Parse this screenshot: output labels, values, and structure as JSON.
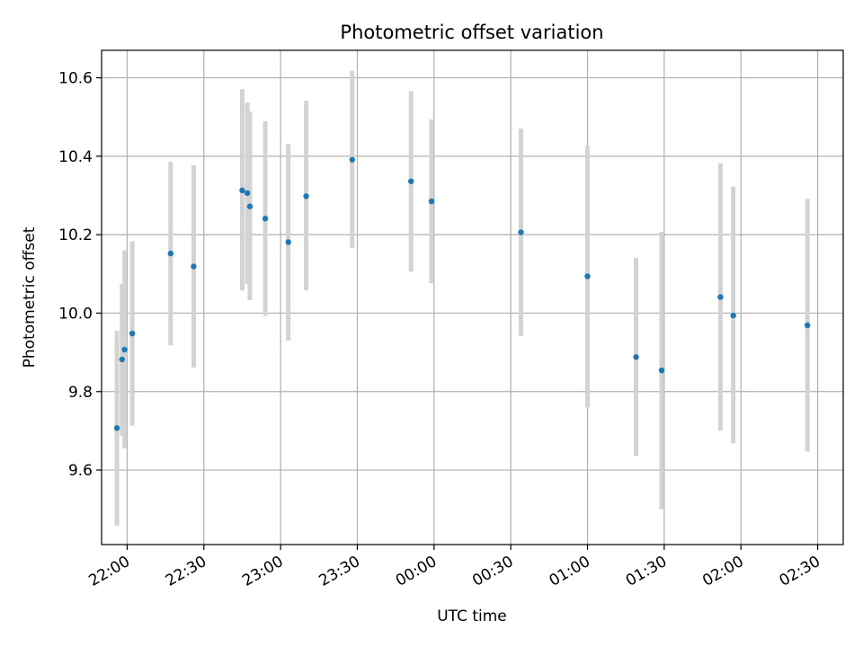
{
  "chart_data": {
    "type": "scatter",
    "title": "Photometric offset variation",
    "xlabel": "UTC time",
    "ylabel": "Photometric offset",
    "x_unit": "time",
    "xlim": [
      "21:50",
      "02:40"
    ],
    "ylim": [
      9.41,
      10.67
    ],
    "xticks": [
      "22:00",
      "22:30",
      "23:00",
      "23:30",
      "00:00",
      "00:30",
      "01:00",
      "01:30",
      "02:00",
      "02:30"
    ],
    "yticks": [
      "9.6",
      "9.8",
      "10.0",
      "10.2",
      "10.4",
      "10.6"
    ],
    "ytick_values": [
      9.6,
      9.8,
      10.0,
      10.2,
      10.4,
      10.6
    ],
    "grid": true,
    "colors": {
      "point": "#1f77b4",
      "errorbar": "#d3d3d3",
      "grid": "#b0b0b0"
    },
    "points": [
      {
        "x": "21:56",
        "y": 9.707,
        "low": 9.458,
        "high": 9.955
      },
      {
        "x": "21:58",
        "y": 9.882,
        "low": 9.687,
        "high": 10.075
      },
      {
        "x": "21:59",
        "y": 9.907,
        "low": 9.655,
        "high": 10.16
      },
      {
        "x": "22:02",
        "y": 9.948,
        "low": 9.713,
        "high": 10.183
      },
      {
        "x": "22:17",
        "y": 10.152,
        "low": 9.918,
        "high": 10.386
      },
      {
        "x": "22:26",
        "y": 10.119,
        "low": 9.861,
        "high": 10.377
      },
      {
        "x": "22:45",
        "y": 10.313,
        "low": 10.058,
        "high": 10.571
      },
      {
        "x": "22:47",
        "y": 10.306,
        "low": 10.074,
        "high": 10.537
      },
      {
        "x": "22:48",
        "y": 10.272,
        "low": 10.033,
        "high": 10.514
      },
      {
        "x": "22:54",
        "y": 10.241,
        "low": 9.993,
        "high": 10.489
      },
      {
        "x": "23:03",
        "y": 10.181,
        "low": 9.93,
        "high": 10.432
      },
      {
        "x": "23:10",
        "y": 10.298,
        "low": 10.058,
        "high": 10.541
      },
      {
        "x": "23:28",
        "y": 10.391,
        "low": 10.167,
        "high": 10.618
      },
      {
        "x": "23:51",
        "y": 10.336,
        "low": 10.106,
        "high": 10.566
      },
      {
        "x": "23:59",
        "y": 10.285,
        "low": 10.076,
        "high": 10.494
      },
      {
        "x": "00:34",
        "y": 10.206,
        "low": 9.942,
        "high": 10.47
      },
      {
        "x": "01:00",
        "y": 10.094,
        "low": 9.76,
        "high": 10.427
      },
      {
        "x": "01:19",
        "y": 9.888,
        "low": 9.636,
        "high": 10.141
      },
      {
        "x": "01:29",
        "y": 9.854,
        "low": 9.5,
        "high": 10.207
      },
      {
        "x": "01:52",
        "y": 10.041,
        "low": 9.7,
        "high": 10.382
      },
      {
        "x": "01:57",
        "y": 9.994,
        "low": 9.668,
        "high": 10.323
      },
      {
        "x": "02:26",
        "y": 9.969,
        "low": 9.647,
        "high": 10.291
      }
    ]
  }
}
